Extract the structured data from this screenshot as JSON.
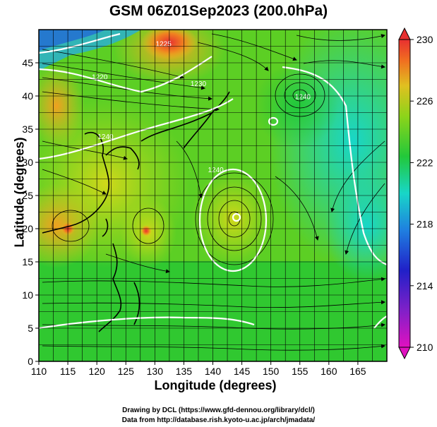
{
  "title": "GSM 06Z01Sep2023 (200.0hPa)",
  "x_axis": {
    "label": "Longitude (degrees)",
    "range": [
      110,
      170
    ],
    "ticks": [
      110,
      115,
      120,
      125,
      130,
      135,
      140,
      145,
      150,
      155,
      160,
      165
    ]
  },
  "y_axis": {
    "label": "Latitude  (degrees)",
    "range": [
      0,
      50
    ],
    "ticks": [
      0,
      5,
      10,
      15,
      20,
      25,
      30,
      35,
      40,
      45
    ]
  },
  "colorbar": {
    "ticks": [
      210,
      214,
      218,
      222,
      226,
      230
    ],
    "range": [
      210,
      230
    ],
    "colors": [
      "#e011c0",
      "#2020c8",
      "#1f8fd8",
      "#18d6c8",
      "#22c83a",
      "#5cd01c",
      "#b4d81a",
      "#f0b020",
      "#f06020",
      "#e83030"
    ]
  },
  "contour_labels": [
    {
      "text": "1220",
      "lon": 120.5,
      "lat": 42.5
    },
    {
      "text": "1225",
      "lon": 131.5,
      "lat": 47.5
    },
    {
      "text": "1230",
      "lon": 137.5,
      "lat": 41.5
    },
    {
      "text": "1240",
      "lon": 121.5,
      "lat": 33.5
    },
    {
      "text": "1240",
      "lon": 155.5,
      "lat": 39.5
    },
    {
      "text": "1240",
      "lon": 140.5,
      "lat": 28.5
    }
  ],
  "credits": [
    "Drawing by DCL (https://www.gfd-dennou.org/library/dcl/)",
    "Data from http://database.rish.kyoto-u.ac.jp/arch/jmadata/"
  ]
}
